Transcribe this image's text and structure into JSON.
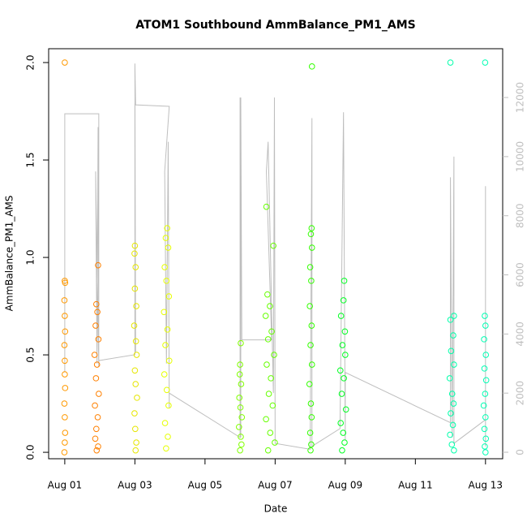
{
  "chart_data": {
    "type": "scatter",
    "title": "ATOM1 Southbound AmmBalance_PM1_AMS",
    "x_label": "Date",
    "y_label": "AmmBalance_PM1_AMS",
    "xlim": [
      0.54,
      13.49
    ],
    "xticks": [
      {
        "value": 1,
        "label": "Aug 01"
      },
      {
        "value": 3,
        "label": "Aug 03"
      },
      {
        "value": 5,
        "label": "Aug 05"
      },
      {
        "value": 7,
        "label": "Aug 07"
      },
      {
        "value": 9,
        "label": "Aug 09"
      },
      {
        "value": 11,
        "label": "Aug 11"
      },
      {
        "value": 13,
        "label": "Aug 13"
      }
    ],
    "ylim": [
      -0.033,
      2.071
    ],
    "yticks": [
      {
        "value": 0,
        "label": "0.0"
      },
      0.5,
      {
        "value": 1,
        "label": "1.0"
      },
      1.5,
      {
        "value": 2,
        "label": "2.0"
      }
    ],
    "y2lim": [
      -220,
      13650
    ],
    "y2ticks": [
      0,
      2000,
      4000,
      6000,
      8000,
      10000,
      12000
    ],
    "y2_color": "#bebebe",
    "series": [
      {
        "color": "#bebebe",
        "axis": "y2",
        "x": [
          1.0,
          1.0,
          1.97,
          1.97,
          1.88,
          1.92,
          1.95,
          1.97,
          3.0,
          3.0,
          3.02,
          3.0,
          3.02,
          3.98,
          3.85,
          3.9,
          3.95,
          3.98,
          3.98,
          6.0,
          6.0,
          6.02,
          6.02,
          6.05,
          6.9,
          6.75,
          6.8,
          6.95,
          6.98,
          7.0,
          8.0,
          8.05,
          8.05,
          8.85,
          8.95,
          9.0,
          9.0,
          12.0,
          12.0,
          12.05,
          12.1,
          12.1,
          13.0,
          13.0,
          13.0
        ],
        "values": [
          2700,
          11450,
          11450,
          2900,
          9500,
          3000,
          11000,
          3100,
          3300,
          11800,
          3400,
          13150,
          11750,
          11700,
          9500,
          3000,
          10500,
          1500,
          2000,
          500,
          12000,
          500,
          12000,
          3800,
          3800,
          9500,
          10500,
          2000,
          12000,
          300,
          100,
          11300,
          200,
          800,
          11500,
          400,
          2700,
          1000,
          9300,
          500,
          10000,
          300,
          1100,
          9000,
          200
        ]
      },
      {
        "color": "#ff9900",
        "x": [
          1.0,
          1.0,
          1.01,
          0.99,
          1.0,
          1.01,
          0.99,
          1.0,
          1.0,
          1.01,
          0.99,
          1.0,
          1.01,
          1.0,
          0.99
        ],
        "values": [
          2.0,
          0.88,
          0.87,
          0.78,
          0.7,
          0.62,
          0.55,
          0.47,
          0.4,
          0.33,
          0.25,
          0.18,
          0.1,
          0.05,
          0.0
        ]
      },
      {
        "color": "#ff8000",
        "x": [
          1.95,
          1.9,
          1.93,
          1.88,
          1.96,
          1.85,
          1.92,
          1.89,
          1.97,
          1.86,
          1.94,
          1.9,
          1.87,
          1.95,
          1.91
        ],
        "values": [
          0.96,
          0.76,
          0.72,
          0.65,
          0.58,
          0.5,
          0.45,
          0.38,
          0.3,
          0.24,
          0.18,
          0.12,
          0.07,
          0.03,
          0.01
        ]
      },
      {
        "color": "#e6e600",
        "x": [
          3.0,
          2.99,
          3.02,
          3.0,
          3.04,
          2.98,
          3.03,
          3.05,
          3.0,
          3.02,
          3.06,
          2.99,
          3.01,
          3.04,
          3.02
        ],
        "values": [
          1.06,
          1.02,
          0.95,
          0.84,
          0.75,
          0.65,
          0.57,
          0.5,
          0.42,
          0.35,
          0.28,
          0.2,
          0.12,
          0.05,
          0.01
        ]
      },
      {
        "color": "#e6ff00",
        "x": [
          3.92,
          3.88,
          3.95,
          3.85,
          3.9,
          3.97,
          3.83,
          3.93,
          3.87,
          3.98,
          3.84,
          3.91,
          3.96,
          3.86,
          3.94,
          3.89
        ],
        "values": [
          1.15,
          1.1,
          1.05,
          0.95,
          0.88,
          0.8,
          0.72,
          0.63,
          0.55,
          0.47,
          0.4,
          0.32,
          0.24,
          0.15,
          0.08,
          0.02
        ]
      },
      {
        "color": "#80ff00",
        "x": [
          6.02,
          6.0,
          5.99,
          6.03,
          5.98,
          6.01,
          6.05,
          5.97,
          6.02,
          6.04,
          6.0
        ],
        "values": [
          0.56,
          0.45,
          0.4,
          0.35,
          0.28,
          0.23,
          0.18,
          0.13,
          0.08,
          0.04,
          0.01
        ]
      },
      {
        "color": "#66ff00",
        "x": [
          6.75,
          6.95,
          6.78,
          6.85,
          6.73,
          6.9,
          6.8,
          6.97,
          6.76,
          6.88,
          6.82,
          6.93,
          6.74,
          6.86,
          6.99,
          6.8
        ],
        "values": [
          1.26,
          1.06,
          0.81,
          0.75,
          0.7,
          0.62,
          0.58,
          0.5,
          0.45,
          0.38,
          0.3,
          0.24,
          0.17,
          0.1,
          0.05,
          0.01
        ]
      },
      {
        "color": "#33ff00",
        "x": [
          8.05,
          8.04,
          8.02,
          8.05,
          8.0,
          8.03,
          7.99,
          8.04,
          8.01,
          8.05,
          7.98,
          8.02,
          8.04,
          8.0,
          8.03,
          8.01
        ],
        "values": [
          1.98,
          1.15,
          1.12,
          1.05,
          0.95,
          0.88,
          0.75,
          0.65,
          0.55,
          0.45,
          0.35,
          0.25,
          0.18,
          0.1,
          0.04,
          0.01
        ]
      },
      {
        "color": "#00ff22",
        "x": [
          8.97,
          8.95,
          8.88,
          8.99,
          8.92,
          9.0,
          8.86,
          8.96,
          8.9,
          9.02,
          8.87,
          8.94,
          8.98,
          8.91
        ],
        "values": [
          0.88,
          0.78,
          0.7,
          0.62,
          0.55,
          0.5,
          0.42,
          0.38,
          0.3,
          0.22,
          0.15,
          0.1,
          0.05,
          0.01
        ]
      },
      {
        "color": "#00ffaa",
        "x": [
          12.0,
          12.1,
          12.0,
          12.08,
          12.02,
          12.1,
          11.98,
          12.05,
          12.09,
          12.01,
          12.07,
          11.99,
          12.04,
          12.1
        ],
        "values": [
          2.0,
          0.7,
          0.68,
          0.6,
          0.52,
          0.45,
          0.38,
          0.3,
          0.25,
          0.2,
          0.14,
          0.09,
          0.04,
          0.01
        ]
      },
      {
        "color": "#00ffb3",
        "x": [
          12.99,
          12.98,
          13.0,
          12.96,
          13.01,
          12.97,
          13.02,
          12.99,
          12.95,
          13.0,
          12.97,
          13.01,
          12.98,
          13.0
        ],
        "values": [
          2.0,
          0.7,
          0.65,
          0.58,
          0.5,
          0.43,
          0.37,
          0.3,
          0.24,
          0.18,
          0.12,
          0.07,
          0.03,
          0.0
        ]
      }
    ]
  }
}
